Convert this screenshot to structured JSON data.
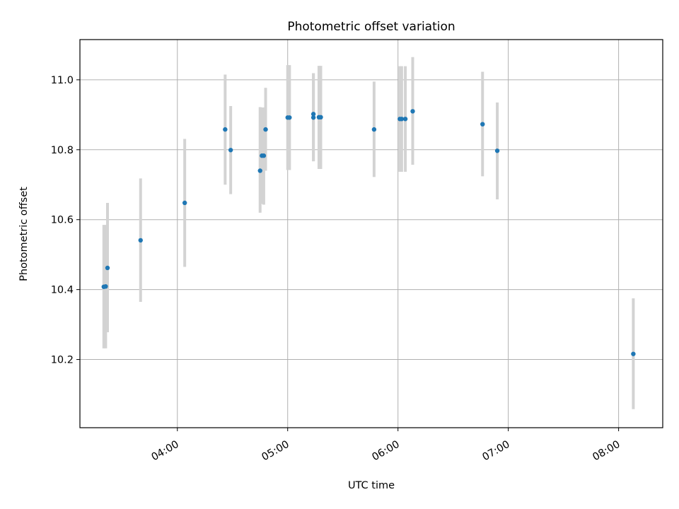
{
  "chart_data": {
    "type": "scatter",
    "title": "Photometric offset variation",
    "xlabel": "UTC time",
    "ylabel": "Photometric offset",
    "xlim": [
      "03:07",
      "08:24"
    ],
    "ylim": [
      10.005,
      11.115
    ],
    "x_ticks": [
      "04:00",
      "05:00",
      "06:00",
      "07:00",
      "08:00"
    ],
    "y_ticks": [
      "10.2",
      "10.4",
      "10.6",
      "10.8",
      "11.0"
    ],
    "grid": true,
    "point_color": "#1f77b4",
    "errorbar_color": "#d3d3d3",
    "series": [
      {
        "points": [
          {
            "x": "03:20",
            "y": 10.408,
            "err_low": 10.232,
            "err_high": 10.585
          },
          {
            "x": "03:21",
            "y": 10.409,
            "err_low": 10.232,
            "err_high": 10.585
          },
          {
            "x": "03:22",
            "y": 10.462,
            "err_low": 10.278,
            "err_high": 10.648
          },
          {
            "x": "03:40",
            "y": 10.541,
            "err_low": 10.365,
            "err_high": 10.718
          },
          {
            "x": "04:04",
            "y": 10.648,
            "err_low": 10.465,
            "err_high": 10.831
          },
          {
            "x": "04:26",
            "y": 10.858,
            "err_low": 10.7,
            "err_high": 11.015
          },
          {
            "x": "04:29",
            "y": 10.799,
            "err_low": 10.673,
            "err_high": 10.925
          },
          {
            "x": "04:45",
            "y": 10.74,
            "err_low": 10.62,
            "err_high": 10.922
          },
          {
            "x": "04:46",
            "y": 10.783,
            "err_low": 10.645,
            "err_high": 10.921
          },
          {
            "x": "04:47",
            "y": 10.783,
            "err_low": 10.643,
            "err_high": 10.921
          },
          {
            "x": "04:48",
            "y": 10.858,
            "err_low": 10.74,
            "err_high": 10.977
          },
          {
            "x": "05:00",
            "y": 10.892,
            "err_low": 10.742,
            "err_high": 11.042
          },
          {
            "x": "05:01",
            "y": 10.892,
            "err_low": 10.742,
            "err_high": 11.042
          },
          {
            "x": "05:14",
            "y": 10.902,
            "err_low": 10.767,
            "err_high": 11.019
          },
          {
            "x": "05:14",
            "y": 10.892,
            "err_low": 10.767,
            "err_high": 11.019
          },
          {
            "x": "05:17",
            "y": 10.893,
            "err_low": 10.745,
            "err_high": 11.04
          },
          {
            "x": "05:18",
            "y": 10.893,
            "err_low": 10.745,
            "err_high": 11.04
          },
          {
            "x": "05:47",
            "y": 10.858,
            "err_low": 10.722,
            "err_high": 10.995
          },
          {
            "x": "06:01",
            "y": 10.888,
            "err_low": 10.737,
            "err_high": 11.039
          },
          {
            "x": "06:02",
            "y": 10.888,
            "err_low": 10.737,
            "err_high": 11.039
          },
          {
            "x": "06:04",
            "y": 10.888,
            "err_low": 10.737,
            "err_high": 11.039
          },
          {
            "x": "06:08",
            "y": 10.91,
            "err_low": 10.757,
            "err_high": 11.065
          },
          {
            "x": "06:46",
            "y": 10.873,
            "err_low": 10.724,
            "err_high": 11.023
          },
          {
            "x": "06:54",
            "y": 10.797,
            "err_low": 10.658,
            "err_high": 10.935
          },
          {
            "x": "08:08",
            "y": 10.216,
            "err_low": 10.058,
            "err_high": 10.375
          }
        ]
      }
    ]
  }
}
